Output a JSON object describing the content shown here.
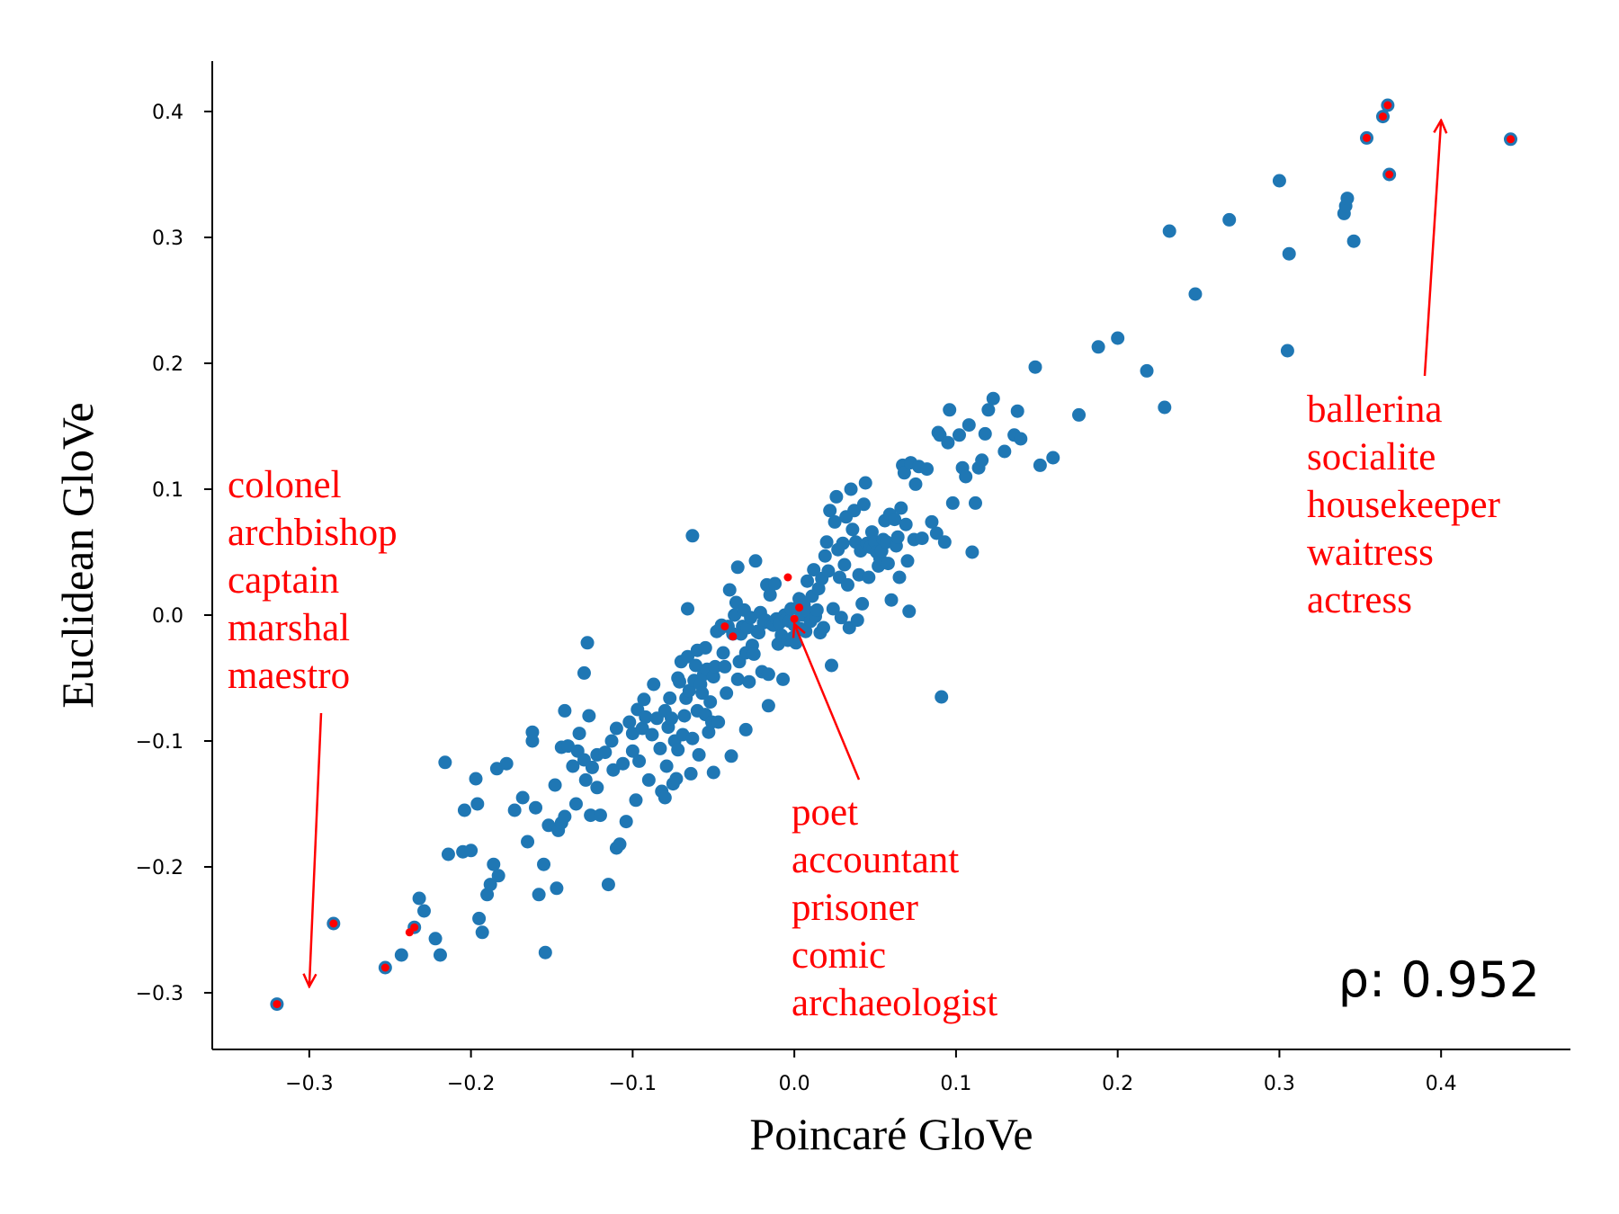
{
  "chart_data": {
    "type": "scatter",
    "xlabel": "Poincaré GloVe",
    "ylabel": "Euclidean GloVe",
    "xlim": [
      -0.36,
      0.48
    ],
    "ylim": [
      -0.345,
      0.44
    ],
    "xticks": [
      -0.3,
      -0.2,
      -0.1,
      0.0,
      0.1,
      0.2,
      0.3,
      0.4
    ],
    "xtick_labels": [
      "−0.3",
      "−0.2",
      "−0.1",
      "0.0",
      "0.1",
      "0.2",
      "0.3",
      "0.4"
    ],
    "yticks": [
      -0.3,
      -0.2,
      -0.1,
      0.0,
      0.1,
      0.2,
      0.3,
      0.4
    ],
    "ytick_labels": [
      "−0.3",
      "−0.2",
      "−0.1",
      "0.0",
      "0.1",
      "0.2",
      "0.3",
      "0.4"
    ],
    "point_color": "#1f77b4",
    "highlight_color": "#ff0000",
    "points": [
      [
        -0.32,
        -0.309
      ],
      [
        -0.285,
        -0.245
      ],
      [
        -0.253,
        -0.28
      ],
      [
        -0.235,
        -0.248
      ],
      [
        -0.243,
        -0.27
      ],
      [
        -0.232,
        -0.225
      ],
      [
        -0.229,
        -0.235
      ],
      [
        -0.222,
        -0.257
      ],
      [
        -0.219,
        -0.27
      ],
      [
        -0.216,
        -0.117
      ],
      [
        -0.214,
        -0.19
      ],
      [
        -0.205,
        -0.188
      ],
      [
        -0.204,
        -0.155
      ],
      [
        -0.2,
        -0.187
      ],
      [
        -0.197,
        -0.13
      ],
      [
        -0.196,
        -0.15
      ],
      [
        -0.193,
        -0.252
      ],
      [
        -0.195,
        -0.241
      ],
      [
        -0.19,
        -0.222
      ],
      [
        -0.188,
        -0.214
      ],
      [
        -0.186,
        -0.198
      ],
      [
        -0.184,
        -0.122
      ],
      [
        -0.183,
        -0.207
      ],
      [
        -0.178,
        -0.118
      ],
      [
        -0.173,
        -0.155
      ],
      [
        -0.168,
        -0.145
      ],
      [
        -0.165,
        -0.18
      ],
      [
        -0.162,
        -0.093
      ],
      [
        -0.162,
        -0.1
      ],
      [
        -0.16,
        -0.153
      ],
      [
        -0.158,
        -0.222
      ],
      [
        -0.155,
        -0.198
      ],
      [
        -0.154,
        -0.268
      ],
      [
        -0.152,
        -0.167
      ],
      [
        -0.148,
        -0.135
      ],
      [
        -0.147,
        -0.217
      ],
      [
        -0.146,
        -0.171
      ],
      [
        -0.144,
        -0.105
      ],
      [
        -0.144,
        -0.165
      ],
      [
        -0.142,
        -0.076
      ],
      [
        -0.142,
        -0.16
      ],
      [
        -0.14,
        -0.104
      ],
      [
        -0.137,
        -0.12
      ],
      [
        -0.135,
        -0.15
      ],
      [
        -0.134,
        -0.108
      ],
      [
        -0.133,
        -0.094
      ],
      [
        -0.13,
        -0.115
      ],
      [
        -0.129,
        -0.131
      ],
      [
        -0.13,
        -0.046
      ],
      [
        -0.128,
        -0.022
      ],
      [
        -0.127,
        -0.08
      ],
      [
        -0.126,
        -0.159
      ],
      [
        -0.125,
        -0.121
      ],
      [
        -0.122,
        -0.137
      ],
      [
        -0.122,
        -0.111
      ],
      [
        -0.12,
        -0.159
      ],
      [
        -0.117,
        -0.109
      ],
      [
        -0.115,
        -0.214
      ],
      [
        -0.113,
        -0.1
      ],
      [
        -0.112,
        -0.123
      ],
      [
        -0.11,
        -0.185
      ],
      [
        -0.11,
        -0.09
      ],
      [
        -0.108,
        -0.182
      ],
      [
        -0.106,
        -0.118
      ],
      [
        -0.104,
        -0.164
      ],
      [
        -0.102,
        -0.085
      ],
      [
        -0.1,
        -0.108
      ],
      [
        -0.1,
        -0.094
      ],
      [
        -0.098,
        -0.147
      ],
      [
        -0.097,
        -0.075
      ],
      [
        -0.096,
        -0.116
      ],
      [
        -0.094,
        -0.09
      ],
      [
        -0.093,
        -0.067
      ],
      [
        -0.092,
        -0.081
      ],
      [
        -0.09,
        -0.131
      ],
      [
        -0.088,
        -0.095
      ],
      [
        -0.087,
        -0.055
      ],
      [
        -0.085,
        -0.082
      ],
      [
        -0.083,
        -0.106
      ],
      [
        -0.082,
        -0.14
      ],
      [
        -0.08,
        -0.076
      ],
      [
        -0.08,
        -0.145
      ],
      [
        -0.079,
        -0.12
      ],
      [
        -0.078,
        -0.089
      ],
      [
        -0.077,
        -0.066
      ],
      [
        -0.076,
        -0.082
      ],
      [
        -0.075,
        -0.134
      ],
      [
        -0.074,
        -0.1
      ],
      [
        -0.073,
        -0.13
      ],
      [
        -0.072,
        -0.107
      ],
      [
        -0.072,
        -0.05
      ],
      [
        -0.071,
        -0.053
      ],
      [
        -0.07,
        -0.037
      ],
      [
        -0.069,
        -0.095
      ],
      [
        -0.068,
        -0.08
      ],
      [
        -0.067,
        -0.066
      ],
      [
        -0.066,
        -0.033
      ],
      [
        -0.066,
        0.005
      ],
      [
        -0.065,
        -0.06
      ],
      [
        -0.064,
        -0.126
      ],
      [
        -0.063,
        0.063
      ],
      [
        -0.063,
        -0.098
      ],
      [
        -0.062,
        -0.052
      ],
      [
        -0.061,
        -0.04
      ],
      [
        -0.06,
        -0.076
      ],
      [
        -0.06,
        -0.028
      ],
      [
        -0.059,
        -0.111
      ],
      [
        -0.058,
        -0.055
      ],
      [
        -0.057,
        -0.062
      ],
      [
        -0.056,
        -0.047
      ],
      [
        -0.055,
        -0.026
      ],
      [
        -0.055,
        -0.079
      ],
      [
        -0.054,
        -0.043
      ],
      [
        -0.053,
        -0.093
      ],
      [
        -0.052,
        -0.069
      ],
      [
        -0.051,
        -0.085
      ],
      [
        -0.05,
        -0.049
      ],
      [
        -0.05,
        -0.125
      ],
      [
        -0.049,
        -0.041
      ],
      [
        -0.048,
        -0.013
      ],
      [
        -0.047,
        -0.085
      ],
      [
        -0.046,
        -0.011
      ],
      [
        -0.045,
        -0.008
      ],
      [
        -0.044,
        -0.03
      ],
      [
        -0.043,
        -0.041
      ],
      [
        -0.042,
        -0.062
      ],
      [
        -0.041,
        -0.009
      ],
      [
        -0.04,
        0.02
      ],
      [
        -0.039,
        -0.112
      ],
      [
        -0.038,
        -0.015
      ],
      [
        -0.037,
        0.0
      ],
      [
        -0.036,
        0.01
      ],
      [
        -0.035,
        -0.051
      ],
      [
        -0.035,
        0.038
      ],
      [
        -0.034,
        -0.037
      ],
      [
        -0.033,
        -0.015
      ],
      [
        -0.032,
        -0.009
      ],
      [
        -0.031,
        0.004
      ],
      [
        -0.03,
        -0.091
      ],
      [
        -0.03,
        -0.03
      ],
      [
        -0.029,
        -0.01
      ],
      [
        -0.028,
        -0.053
      ],
      [
        -0.027,
        -0.002
      ],
      [
        -0.026,
        -0.024
      ],
      [
        -0.025,
        -0.031
      ],
      [
        -0.024,
        0.043
      ],
      [
        -0.023,
        -0.013
      ],
      [
        -0.022,
        -0.014
      ],
      [
        -0.021,
        0.002
      ],
      [
        -0.02,
        -0.045
      ],
      [
        -0.019,
        -0.006
      ],
      [
        -0.018,
        -0.004
      ],
      [
        -0.017,
        0.024
      ],
      [
        -0.016,
        -0.047
      ],
      [
        -0.016,
        -0.072
      ],
      [
        -0.015,
        0.016
      ],
      [
        -0.014,
        -0.007
      ],
      [
        -0.013,
        -0.008
      ],
      [
        -0.012,
        0.025
      ],
      [
        -0.011,
        -0.003
      ],
      [
        -0.01,
        -0.023
      ],
      [
        -0.009,
        -0.006
      ],
      [
        -0.008,
        -0.016
      ],
      [
        -0.007,
        -0.051
      ],
      [
        -0.006,
        0.0
      ],
      [
        -0.005,
        -0.003
      ],
      [
        -0.004,
        -0.02
      ],
      [
        -0.003,
        -0.005
      ],
      [
        -0.002,
        0.005
      ],
      [
        -0.001,
        -0.018
      ],
      [
        0.0,
        -0.008
      ],
      [
        0.001,
        -0.022
      ],
      [
        0.002,
        0.005
      ],
      [
        0.003,
        0.013
      ],
      [
        0.004,
        -0.011
      ],
      [
        0.005,
        0.0
      ],
      [
        0.006,
        0.008
      ],
      [
        0.007,
        -0.013
      ],
      [
        0.008,
        0.027
      ],
      [
        0.009,
        0.002
      ],
      [
        0.01,
        -0.005
      ],
      [
        0.011,
        0.015
      ],
      [
        0.012,
        0.036
      ],
      [
        0.013,
        -0.001
      ],
      [
        0.014,
        0.004
      ],
      [
        0.015,
        0.021
      ],
      [
        0.016,
        -0.014
      ],
      [
        0.017,
        0.029
      ],
      [
        0.018,
        -0.01
      ],
      [
        0.019,
        0.047
      ],
      [
        0.02,
        0.058
      ],
      [
        0.021,
        0.035
      ],
      [
        0.022,
        0.083
      ],
      [
        0.023,
        -0.04
      ],
      [
        0.024,
        0.005
      ],
      [
        0.025,
        0.074
      ],
      [
        0.026,
        0.094
      ],
      [
        0.027,
        0.052
      ],
      [
        0.028,
        0.03
      ],
      [
        0.029,
        -0.002
      ],
      [
        0.03,
        0.057
      ],
      [
        0.031,
        0.04
      ],
      [
        0.032,
        0.078
      ],
      [
        0.033,
        0.024
      ],
      [
        0.034,
        -0.01
      ],
      [
        0.035,
        0.1
      ],
      [
        0.036,
        0.068
      ],
      [
        0.037,
        0.083
      ],
      [
        0.038,
        0.058
      ],
      [
        0.039,
        -0.004
      ],
      [
        0.04,
        0.032
      ],
      [
        0.041,
        0.051
      ],
      [
        0.042,
        0.009
      ],
      [
        0.043,
        0.088
      ],
      [
        0.044,
        0.105
      ],
      [
        0.045,
        0.057
      ],
      [
        0.046,
        0.03
      ],
      [
        0.047,
        0.054
      ],
      [
        0.048,
        0.066
      ],
      [
        0.049,
        0.053
      ],
      [
        0.05,
        0.058
      ],
      [
        0.051,
        0.05
      ],
      [
        0.052,
        0.039
      ],
      [
        0.053,
        0.045
      ],
      [
        0.054,
        0.051
      ],
      [
        0.055,
        0.06
      ],
      [
        0.056,
        0.075
      ],
      [
        0.057,
        0.058
      ],
      [
        0.058,
        0.041
      ],
      [
        0.059,
        0.08
      ],
      [
        0.06,
        0.012
      ],
      [
        0.062,
        0.076
      ],
      [
        0.063,
        0.055
      ],
      [
        0.064,
        0.062
      ],
      [
        0.065,
        0.03
      ],
      [
        0.066,
        0.085
      ],
      [
        0.067,
        0.119
      ],
      [
        0.068,
        0.113
      ],
      [
        0.069,
        0.072
      ],
      [
        0.07,
        0.043
      ],
      [
        0.071,
        0.003
      ],
      [
        0.072,
        0.121
      ],
      [
        0.074,
        0.06
      ],
      [
        0.075,
        0.104
      ],
      [
        0.077,
        0.118
      ],
      [
        0.079,
        0.061
      ],
      [
        0.082,
        0.116
      ],
      [
        0.085,
        0.074
      ],
      [
        0.088,
        0.065
      ],
      [
        0.089,
        0.145
      ],
      [
        0.09,
        0.143
      ],
      [
        0.091,
        -0.065
      ],
      [
        0.093,
        0.058
      ],
      [
        0.095,
        0.137
      ],
      [
        0.096,
        0.163
      ],
      [
        0.098,
        0.089
      ],
      [
        0.102,
        0.143
      ],
      [
        0.104,
        0.117
      ],
      [
        0.106,
        0.11
      ],
      [
        0.108,
        0.151
      ],
      [
        0.11,
        0.05
      ],
      [
        0.112,
        0.089
      ],
      [
        0.114,
        0.117
      ],
      [
        0.116,
        0.123
      ],
      [
        0.118,
        0.144
      ],
      [
        0.12,
        0.163
      ],
      [
        0.123,
        0.172
      ],
      [
        0.13,
        0.13
      ],
      [
        0.136,
        0.143
      ],
      [
        0.138,
        0.162
      ],
      [
        0.14,
        0.14
      ],
      [
        0.149,
        0.197
      ],
      [
        0.152,
        0.119
      ],
      [
        0.16,
        0.125
      ],
      [
        0.176,
        0.159
      ],
      [
        0.188,
        0.213
      ],
      [
        0.2,
        0.22
      ],
      [
        0.218,
        0.194
      ],
      [
        0.229,
        0.165
      ],
      [
        0.232,
        0.305
      ],
      [
        0.248,
        0.255
      ],
      [
        0.269,
        0.314
      ],
      [
        0.3,
        0.345
      ],
      [
        0.305,
        0.21
      ],
      [
        0.306,
        0.287
      ],
      [
        0.34,
        0.319
      ],
      [
        0.341,
        0.325
      ],
      [
        0.342,
        0.331
      ],
      [
        0.346,
        0.297
      ],
      [
        0.354,
        0.379
      ],
      [
        0.364,
        0.396
      ],
      [
        0.367,
        0.405
      ],
      [
        0.368,
        0.35
      ],
      [
        0.443,
        0.378
      ]
    ],
    "highlighted_points": [
      [
        -0.32,
        -0.309
      ],
      [
        -0.285,
        -0.245
      ],
      [
        -0.253,
        -0.28
      ],
      [
        -0.235,
        -0.248
      ],
      [
        -0.238,
        -0.252
      ],
      [
        -0.043,
        -0.009
      ],
      [
        -0.038,
        -0.017
      ],
      [
        -0.004,
        0.03
      ],
      [
        0.003,
        0.006
      ],
      [
        0.0,
        -0.003
      ],
      [
        0.354,
        0.379
      ],
      [
        0.364,
        0.396
      ],
      [
        0.367,
        0.405
      ],
      [
        0.368,
        0.35
      ],
      [
        0.443,
        0.378
      ]
    ],
    "annotations": [
      {
        "lines": [
          "colonel",
          "archbishop",
          "captain",
          "marshal",
          "maestro"
        ],
        "arrow_to": [
          -0.3,
          -0.295
        ]
      },
      {
        "lines": [
          "poet",
          "accountant",
          "prisoner",
          "comic",
          "archaeologist"
        ],
        "arrow_to": [
          0.0,
          -0.007
        ]
      },
      {
        "lines": [
          "ballerina",
          "socialite",
          "housekeeper",
          "waitress",
          "actress"
        ],
        "arrow_to": [
          0.4,
          0.393
        ]
      }
    ],
    "stat_label": "ρ: 0.952"
  }
}
